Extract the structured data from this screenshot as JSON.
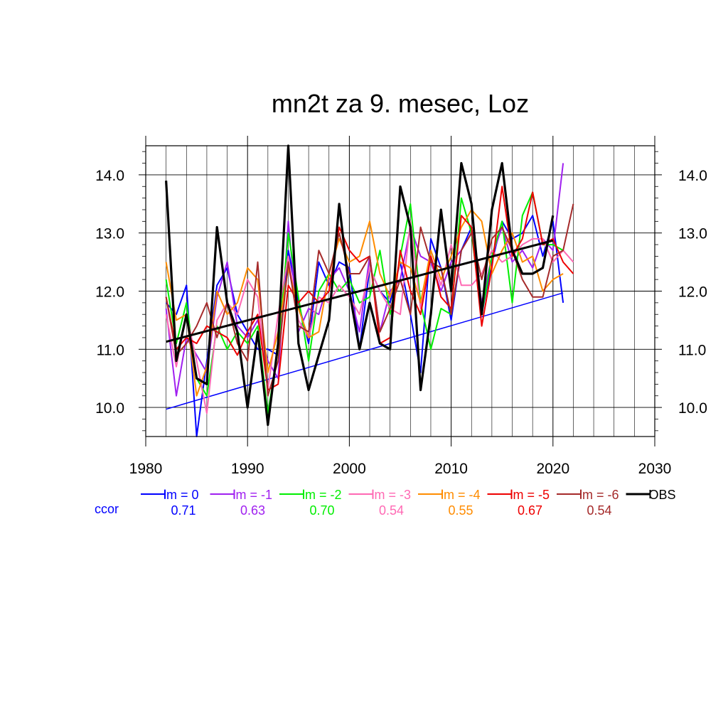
{
  "chart_data": {
    "type": "line",
    "title": "mn2t za 9. mesec, Loz",
    "xlabel": "",
    "ylabel": "",
    "xlim": [
      1980,
      2030
    ],
    "ylim": [
      9.5,
      14.5
    ],
    "grid": true,
    "legend_position": "bottom",
    "x_ticks": [
      1980,
      1990,
      2000,
      2010,
      2020,
      2030
    ],
    "y_ticks": [
      10.0,
      11.0,
      12.0,
      13.0,
      14.0
    ],
    "x_tick_labels": [
      "1980",
      "1990",
      "2000",
      "2010",
      "2020",
      "2030"
    ],
    "y_tick_labels": [
      "10.0",
      "11.0",
      "12.0",
      "13.0",
      "14.0"
    ],
    "ccor_label": "ccor",
    "series": [
      {
        "name": "lm = 0",
        "color": "#0000ff",
        "ccor": "0.71",
        "x": [
          1982,
          1983,
          1984,
          1985,
          1986,
          1987,
          1988,
          1989,
          1990,
          1991,
          1992,
          1993,
          1994,
          1995,
          1996,
          1997,
          1998,
          1999,
          2000,
          2001,
          2002,
          2003,
          2004,
          2005,
          2006,
          2007,
          2008,
          2009,
          2010,
          2011,
          2012,
          2013,
          2014,
          2015,
          2016,
          2017,
          2018,
          2019,
          2020,
          2021
        ],
        "values": [
          11.8,
          11.6,
          12.1,
          9.5,
          10.8,
          12.1,
          12.4,
          11.6,
          11.3,
          11.0,
          11.0,
          10.9,
          12.7,
          11.8,
          11.1,
          12.5,
          12.1,
          12.5,
          12.4,
          11.0,
          12.4,
          12.0,
          11.8,
          12.5,
          11.6,
          10.6,
          12.9,
          12.4,
          11.5,
          12.7,
          13.1,
          11.6,
          12.5,
          13.2,
          12.9,
          13.0,
          13.3,
          12.6,
          13.2,
          11.8
        ],
        "trend": [
          9.97,
          11.97
        ]
      },
      {
        "name": "lm = -1",
        "color": "#a020f0",
        "ccor": "0.63",
        "x": [
          1982,
          1983,
          1984,
          1985,
          1986,
          1987,
          1988,
          1989,
          1990,
          1991,
          1992,
          1993,
          1994,
          1995,
          1996,
          1997,
          1998,
          1999,
          2000,
          2001,
          2002,
          2003,
          2004,
          2005,
          2006,
          2007,
          2008,
          2009,
          2010,
          2011,
          2012,
          2013,
          2014,
          2015,
          2016,
          2017,
          2018,
          2019,
          2020,
          2021
        ],
        "values": [
          11.7,
          10.2,
          11.2,
          10.9,
          10.6,
          11.9,
          12.5,
          11.4,
          11.2,
          11.5,
          10.8,
          10.5,
          13.2,
          11.3,
          11.7,
          11.6,
          12.2,
          12.4,
          12.0,
          11.3,
          12.6,
          11.3,
          12.0,
          12.2,
          13.1,
          12.6,
          12.5,
          12.0,
          12.5,
          12.7,
          13.0,
          11.8,
          12.6,
          13.1,
          12.5,
          12.7,
          12.4,
          12.9,
          12.7,
          14.2
        ]
      },
      {
        "name": "lm = -2",
        "color": "#00ee00",
        "ccor": "0.70",
        "x": [
          1982,
          1983,
          1984,
          1985,
          1986,
          1987,
          1988,
          1989,
          1990,
          1991,
          1992,
          1993,
          1994,
          1995,
          1996,
          1997,
          1998,
          1999,
          2000,
          2001,
          2002,
          2003,
          2004,
          2005,
          2006,
          2007,
          2008,
          2009,
          2010,
          2011,
          2012,
          2013,
          2014,
          2015,
          2016,
          2017,
          2018,
          2019,
          2020,
          2021
        ],
        "values": [
          12.2,
          11.1,
          11.8,
          10.5,
          10.2,
          11.4,
          11.0,
          11.3,
          11.1,
          11.4,
          9.9,
          11.0,
          13.0,
          11.9,
          10.8,
          12.0,
          12.3,
          12.0,
          12.2,
          11.8,
          11.9,
          12.7,
          11.6,
          12.6,
          13.5,
          11.8,
          11.0,
          11.7,
          11.6,
          13.6,
          13.0,
          11.6,
          12.6,
          13.2,
          11.8,
          13.3,
          13.7,
          12.8,
          12.8,
          12.7
        ]
      },
      {
        "name": "lm = -3",
        "color": "#ff69b4",
        "ccor": "0.54",
        "x": [
          1982,
          1983,
          1984,
          1985,
          1986,
          1987,
          1988,
          1989,
          1990,
          1991,
          1992,
          1993,
          1994,
          1995,
          1996,
          1997,
          1998,
          1999,
          2000,
          2001,
          2002,
          2003,
          2004,
          2005,
          2006,
          2007,
          2008,
          2009,
          2010,
          2011,
          2012,
          2013,
          2014,
          2015,
          2016,
          2017,
          2018,
          2019,
          2020,
          2021,
          2022
        ],
        "values": [
          11.6,
          10.7,
          11.6,
          10.8,
          9.9,
          11.5,
          11.8,
          11.6,
          12.2,
          11.9,
          10.3,
          11.6,
          12.6,
          11.5,
          11.2,
          11.9,
          11.8,
          12.1,
          11.9,
          11.6,
          12.4,
          12.0,
          11.7,
          11.6,
          13.2,
          11.7,
          12.6,
          12.1,
          12.8,
          12.1,
          12.1,
          12.3,
          12.7,
          12.5,
          12.6,
          12.8,
          12.9,
          12.9,
          12.5,
          12.7,
          12.5
        ]
      },
      {
        "name": "lm = -4",
        "color": "#ff8c00",
        "ccor": "0.55",
        "x": [
          1982,
          1983,
          1984,
          1985,
          1986,
          1987,
          1988,
          1989,
          1990,
          1991,
          1992,
          1993,
          1994,
          1995,
          1996,
          1997,
          1998,
          1999,
          2000,
          2001,
          2002,
          2003,
          2004,
          2005,
          2006,
          2007,
          2008,
          2009,
          2010,
          2011,
          2012,
          2013,
          2014,
          2015,
          2016,
          2017,
          2018,
          2019,
          2020,
          2021
        ],
        "values": [
          12.5,
          11.5,
          11.6,
          10.2,
          10.7,
          12.0,
          11.6,
          11.8,
          12.4,
          12.2,
          10.6,
          11.3,
          12.4,
          11.7,
          11.2,
          11.3,
          12.3,
          12.9,
          12.5,
          12.6,
          13.2,
          12.3,
          11.9,
          12.5,
          12.4,
          11.8,
          12.7,
          12.2,
          12.6,
          13.1,
          13.4,
          13.2,
          12.3,
          12.7,
          13.0,
          12.5,
          12.6,
          12.0,
          12.2,
          12.3
        ]
      },
      {
        "name": "lm = -5",
        "color": "#ee0000",
        "ccor": "0.67",
        "x": [
          1982,
          1983,
          1984,
          1985,
          1986,
          1987,
          1988,
          1989,
          1990,
          1991,
          1992,
          1993,
          1994,
          1995,
          1996,
          1997,
          1998,
          1999,
          2000,
          2001,
          2002,
          2003,
          2004,
          2005,
          2006,
          2007,
          2008,
          2009,
          2010,
          2011,
          2012,
          2013,
          2014,
          2015,
          2016,
          2017,
          2018,
          2019,
          2020,
          2021,
          2022
        ],
        "values": [
          11.9,
          11.0,
          11.2,
          11.1,
          11.4,
          11.3,
          11.2,
          10.9,
          11.3,
          11.6,
          10.3,
          10.4,
          12.1,
          11.8,
          12.0,
          11.8,
          12.0,
          13.1,
          12.7,
          12.5,
          12.6,
          11.1,
          11.2,
          12.7,
          12.0,
          11.6,
          12.6,
          11.9,
          11.7,
          13.3,
          13.1,
          11.4,
          12.4,
          13.8,
          12.6,
          12.9,
          13.7,
          12.8,
          12.9,
          12.5,
          12.3
        ]
      },
      {
        "name": "lm = -6",
        "color": "#a52a2a",
        "ccor": "0.54",
        "x": [
          1982,
          1983,
          1984,
          1985,
          1986,
          1987,
          1988,
          1989,
          1990,
          1991,
          1992,
          1993,
          1994,
          1995,
          1996,
          1997,
          1998,
          1999,
          2000,
          2001,
          2002,
          2003,
          2004,
          2005,
          2006,
          2007,
          2008,
          2009,
          2010,
          2011,
          2012,
          2013,
          2014,
          2015,
          2016,
          2017,
          2018,
          2019,
          2020,
          2021,
          2022
        ],
        "values": [
          11.9,
          10.9,
          11.1,
          11.4,
          11.8,
          11.2,
          11.8,
          11.1,
          10.8,
          12.5,
          10.2,
          10.8,
          12.5,
          11.4,
          11.3,
          12.7,
          12.3,
          13.0,
          12.3,
          12.3,
          12.6,
          11.3,
          11.7,
          12.2,
          11.6,
          13.1,
          12.5,
          12.4,
          11.6,
          12.7,
          13.0,
          12.2,
          12.9,
          13.1,
          12.7,
          12.2,
          11.9,
          11.9,
          12.6,
          12.7,
          13.5
        ]
      },
      {
        "name": "OBS",
        "color": "#000000",
        "ccor": "",
        "x": [
          1982,
          1983,
          1984,
          1985,
          1986,
          1987,
          1988,
          1989,
          1990,
          1991,
          1992,
          1993,
          1994,
          1995,
          1996,
          1997,
          1998,
          1999,
          2000,
          2001,
          2002,
          2003,
          2004,
          2005,
          2006,
          2007,
          2008,
          2009,
          2010,
          2011,
          2012,
          2013,
          2014,
          2015,
          2016,
          2017,
          2018,
          2019,
          2020
        ],
        "values": [
          13.9,
          10.8,
          11.6,
          10.5,
          10.4,
          13.1,
          11.8,
          11.3,
          10.0,
          11.3,
          9.7,
          11.1,
          14.5,
          11.1,
          10.3,
          10.9,
          11.5,
          13.5,
          12.0,
          11.0,
          11.8,
          11.1,
          11.0,
          13.8,
          13.1,
          10.3,
          11.6,
          13.4,
          12.0,
          14.2,
          13.5,
          11.6,
          13.4,
          14.2,
          12.7,
          12.3,
          12.3,
          12.4,
          13.3
        ],
        "trend": [
          11.13,
          12.87
        ]
      }
    ]
  }
}
